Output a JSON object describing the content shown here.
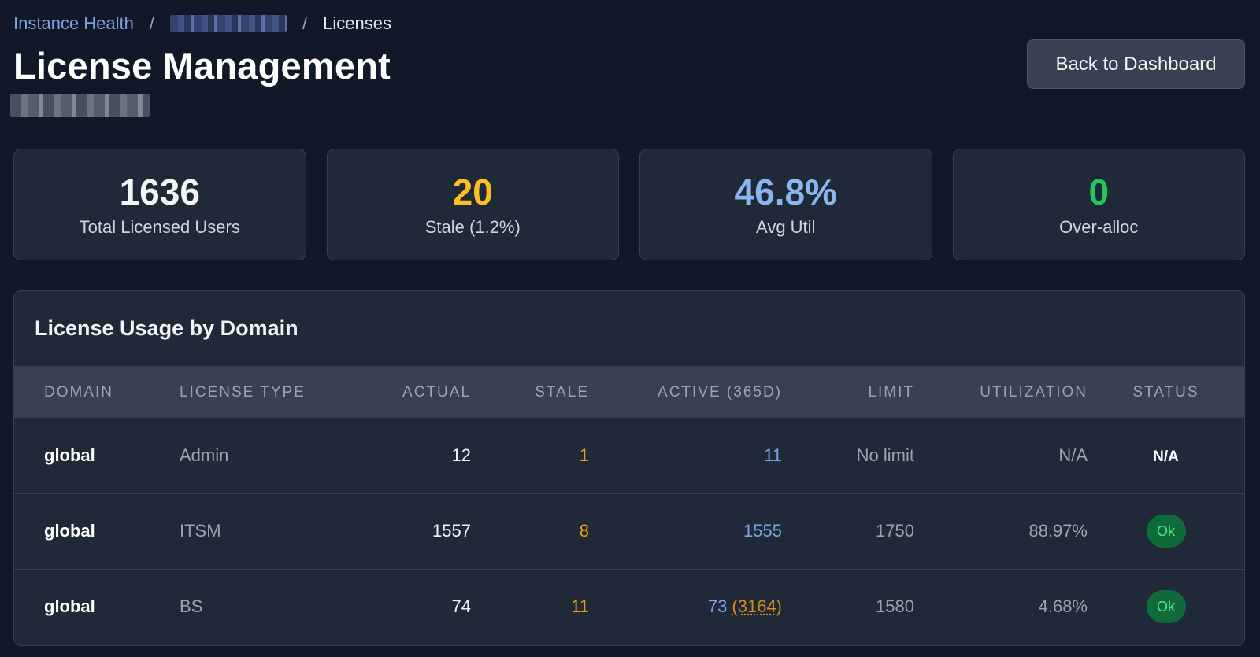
{
  "breadcrumb": {
    "root": "Instance Health",
    "separator": "/",
    "current": "Licenses"
  },
  "header": {
    "title": "License Management",
    "back_button": "Back to Dashboard"
  },
  "stats": [
    {
      "value": "1636",
      "label": "Total Licensed Users",
      "color": "#f3f4f6"
    },
    {
      "value": "20",
      "label": "Stale (1.2%)",
      "color": "#fbbf24"
    },
    {
      "value": "46.8%",
      "label": "Avg Util",
      "color": "#8bb5f0"
    },
    {
      "value": "0",
      "label": "Over-alloc",
      "color": "#22c55e"
    }
  ],
  "table": {
    "title": "License Usage by Domain",
    "columns": [
      "Domain",
      "License Type",
      "Actual",
      "Stale",
      "Active (365d)",
      "Limit",
      "Utilization",
      "Status"
    ],
    "rows": [
      {
        "domain": "global",
        "type": "Admin",
        "actual": "12",
        "stale": "1",
        "active": "11",
        "active_extra": "",
        "limit": "No limit",
        "util": "N/A",
        "status": "N/A"
      },
      {
        "domain": "global",
        "type": "ITSM",
        "actual": "1557",
        "stale": "8",
        "active": "1555",
        "active_extra": "",
        "limit": "1750",
        "util": "88.97%",
        "status": "Ok"
      },
      {
        "domain": "global",
        "type": "BS",
        "actual": "74",
        "stale": "11",
        "active": "73",
        "active_extra": "(3164)",
        "limit": "1580",
        "util": "4.68%",
        "status": "Ok"
      }
    ]
  }
}
